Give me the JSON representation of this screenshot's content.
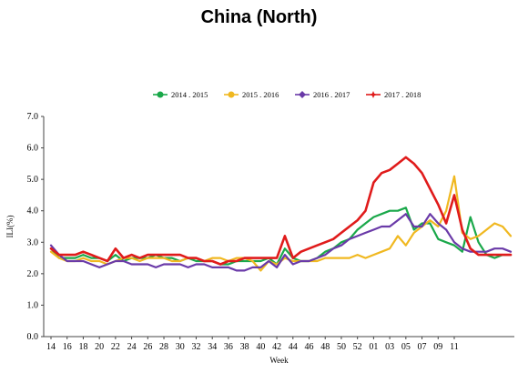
{
  "page_title": "China (North)",
  "chart_data": {
    "type": "line",
    "title": "China (North)",
    "xlabel": "Week",
    "ylabel": "ILI(%)",
    "ylim": [
      0.0,
      7.0
    ],
    "yticks": [
      "0.0",
      "1.0",
      "2.0",
      "3.0",
      "4.0",
      "5.0",
      "6.0",
      "7.0"
    ],
    "x_tick_labels": [
      "14",
      "16",
      "18",
      "20",
      "22",
      "24",
      "26",
      "28",
      "30",
      "32",
      "34",
      "36",
      "38",
      "40",
      "42",
      "44",
      "46",
      "48",
      "50",
      "52",
      "01",
      "03",
      "05",
      "07",
      "09",
      "11"
    ],
    "legend_position": "top",
    "grid": false,
    "series": [
      {
        "name": "2014 . 2015",
        "color": "#1aa84a",
        "values": [
          2.8,
          2.5,
          2.5,
          2.5,
          2.6,
          2.5,
          2.5,
          2.4,
          2.6,
          2.4,
          2.5,
          2.5,
          2.5,
          2.6,
          2.5,
          2.5,
          2.4,
          2.5,
          2.4,
          2.4,
          2.4,
          2.3,
          2.3,
          2.4,
          2.4,
          2.4,
          2.4,
          2.5,
          2.3,
          2.8,
          2.5,
          2.4,
          2.4,
          2.5,
          2.7,
          2.8,
          3.0,
          3.1,
          3.4,
          3.6,
          3.8,
          3.9,
          4.0,
          4.0,
          4.1,
          3.4,
          3.6,
          3.6,
          3.1,
          3.0,
          2.9,
          2.7,
          3.8,
          3.0,
          2.6,
          2.5,
          2.6,
          2.6
        ]
      },
      {
        "name": "2015 . 2016",
        "color": "#f0b820",
        "values": [
          2.7,
          2.5,
          2.4,
          2.4,
          2.5,
          2.4,
          2.4,
          2.3,
          2.4,
          2.5,
          2.5,
          2.4,
          2.5,
          2.5,
          2.5,
          2.4,
          2.4,
          2.5,
          2.5,
          2.4,
          2.5,
          2.5,
          2.4,
          2.5,
          2.5,
          2.4,
          2.1,
          2.4,
          2.3,
          2.5,
          2.4,
          2.4,
          2.4,
          2.4,
          2.5,
          2.5,
          2.5,
          2.5,
          2.6,
          2.5,
          2.6,
          2.7,
          2.8,
          3.2,
          2.9,
          3.3,
          3.5,
          3.7,
          3.5,
          4.0,
          5.1,
          3.3,
          3.1,
          3.2,
          3.4,
          3.6,
          3.5,
          3.2
        ]
      },
      {
        "name": "2016 . 2017",
        "color": "#6a3aa8",
        "values": [
          2.9,
          2.6,
          2.4,
          2.4,
          2.4,
          2.3,
          2.2,
          2.3,
          2.4,
          2.4,
          2.3,
          2.3,
          2.3,
          2.2,
          2.3,
          2.3,
          2.3,
          2.2,
          2.3,
          2.3,
          2.2,
          2.2,
          2.2,
          2.1,
          2.1,
          2.2,
          2.2,
          2.4,
          2.2,
          2.6,
          2.3,
          2.4,
          2.4,
          2.5,
          2.6,
          2.8,
          2.9,
          3.1,
          3.2,
          3.3,
          3.4,
          3.5,
          3.5,
          3.7,
          3.9,
          3.5,
          3.5,
          3.9,
          3.6,
          3.4,
          3.0,
          2.8,
          2.7,
          2.7,
          2.7,
          2.8,
          2.8,
          2.7
        ]
      },
      {
        "name": "2017 . 2018",
        "color": "#e01b1b",
        "values": [
          2.8,
          2.6,
          2.6,
          2.6,
          2.7,
          2.6,
          2.5,
          2.4,
          2.8,
          2.5,
          2.6,
          2.5,
          2.6,
          2.6,
          2.6,
          2.6,
          2.6,
          2.5,
          2.5,
          2.4,
          2.4,
          2.3,
          2.4,
          2.4,
          2.5,
          2.5,
          2.5,
          2.5,
          2.5,
          3.2,
          2.5,
          2.7,
          2.8,
          2.9,
          3.0,
          3.1,
          3.3,
          3.5,
          3.7,
          4.0,
          4.9,
          5.2,
          5.3,
          5.5,
          5.7,
          5.5,
          5.2,
          4.7,
          4.2,
          3.6,
          4.5,
          3.4,
          2.8,
          2.6,
          2.6,
          2.6,
          2.6,
          2.6
        ]
      }
    ]
  }
}
